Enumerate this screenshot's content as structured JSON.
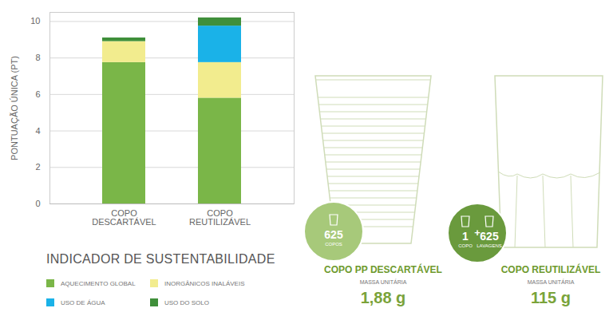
{
  "chart_data": {
    "type": "bar",
    "title": "INDICADOR DE SUSTENTABILIDADE",
    "ylabel": "PONTUAÇÃO ÚNICA (PT)",
    "categories": [
      "COPO DESCARTÁVEL",
      "COPO REUTILIZÁVEL"
    ],
    "series": [
      {
        "name": "AQUECIMENTO GLOBAL",
        "color": "#7ab648",
        "values": [
          7.75,
          5.8
        ]
      },
      {
        "name": "INORGÂNICOS INALÁVEIS",
        "color": "#f2ec8e",
        "values": [
          1.15,
          1.95
        ]
      },
      {
        "name": "USO DE ÁGUA",
        "color": "#1ab2e8",
        "values": [
          0,
          2.0
        ]
      },
      {
        "name": "USO DO SOLO",
        "color": "#3f8f3a",
        "values": [
          0.2,
          0.45
        ]
      }
    ],
    "stacked": true,
    "ylim": [
      0,
      10.5
    ],
    "yticks": [
      0,
      2,
      4,
      6,
      8,
      10
    ],
    "grid": true,
    "legend": "bottom"
  },
  "infographic": {
    "items": [
      {
        "badge": [
          "625",
          "COPOS"
        ],
        "title": "COPO PP DESCARTÁVEL",
        "subtitle": "MASSA UNITÁRIA",
        "mass": "1,88 g"
      },
      {
        "badge": [
          "1",
          "COPO",
          "+",
          "625",
          "LAVAGENS"
        ],
        "title": "COPO REUTILIZÁVEL",
        "subtitle": "MASSA UNITÁRIA",
        "mass": "115 g"
      }
    ]
  }
}
